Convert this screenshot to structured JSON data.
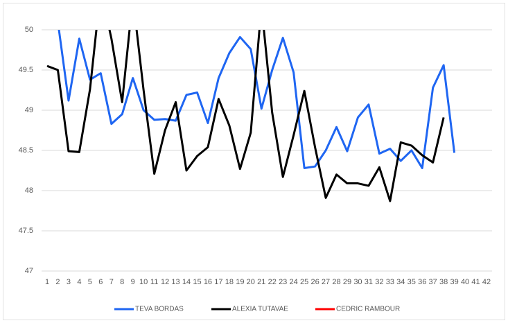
{
  "chart_data": {
    "type": "line",
    "categories": [
      "1",
      "2",
      "3",
      "4",
      "5",
      "6",
      "7",
      "8",
      "9",
      "10",
      "11",
      "12",
      "13",
      "14",
      "15",
      "16",
      "17",
      "18",
      "19",
      "20",
      "21",
      "22",
      "23",
      "24",
      "25",
      "26",
      "27",
      "28",
      "29",
      "30",
      "31",
      "32",
      "33",
      "34",
      "35",
      "36",
      "37",
      "38",
      "39",
      "40",
      "41",
      "42"
    ],
    "series": [
      {
        "name": "TEVA BORDAS",
        "color": "#1f66f2",
        "values": [
          null,
          50.1,
          49.12,
          49.89,
          49.38,
          49.46,
          48.83,
          48.95,
          49.4,
          49.0,
          48.88,
          48.89,
          48.87,
          49.19,
          49.22,
          48.84,
          49.4,
          49.71,
          49.91,
          49.76,
          49.02,
          49.5,
          49.9,
          49.47,
          48.28,
          48.3,
          48.5,
          48.79,
          48.49,
          48.91,
          49.07,
          48.46,
          48.52,
          48.37,
          48.5,
          48.28,
          49.28,
          49.56,
          48.47,
          null,
          null,
          null
        ]
      },
      {
        "name": "ALEXIA TUTAVAE",
        "color": "#000000",
        "values": [
          49.55,
          49.5,
          48.49,
          48.48,
          49.26,
          50.5,
          49.89,
          49.1,
          50.4,
          49.25,
          48.21,
          48.75,
          49.1,
          48.25,
          48.43,
          48.54,
          49.14,
          48.81,
          48.27,
          48.72,
          50.3,
          48.97,
          48.17,
          48.69,
          49.24,
          48.54,
          47.91,
          48.2,
          48.09,
          48.09,
          48.06,
          48.29,
          47.87,
          48.6,
          48.56,
          48.44,
          48.35,
          48.91,
          null,
          null,
          null,
          null
        ]
      },
      {
        "name": "CEDRIC RAMBOUR",
        "color": "#ff0000",
        "values": [
          null,
          null,
          null,
          null,
          null,
          null,
          null,
          null,
          null,
          null,
          null,
          null,
          null,
          null,
          null,
          null,
          null,
          null,
          null,
          null,
          null,
          null,
          null,
          null,
          null,
          null,
          null,
          null,
          null,
          null,
          null,
          null,
          null,
          null,
          null,
          null,
          null,
          null,
          null,
          null,
          null,
          null
        ]
      }
    ],
    "ylim": [
      47,
      50
    ],
    "yticks": [
      47,
      47.5,
      48,
      48.5,
      49,
      49.5,
      50
    ],
    "grid": true,
    "legend": "bottom"
  }
}
